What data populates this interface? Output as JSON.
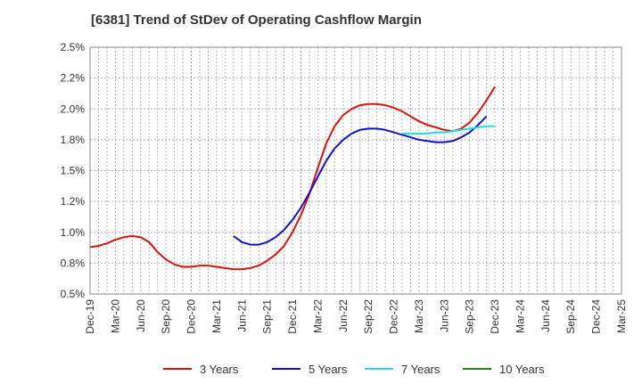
{
  "chart_data": {
    "type": "line",
    "title": "[6381]  Trend of StDev of Operating Cashflow Margin",
    "xlabel": "",
    "ylabel": "",
    "ylim": [
      0.5,
      2.5
    ],
    "yticks": [
      "0.5%",
      "0.8%",
      "1.0%",
      "1.2%",
      "1.5%",
      "1.8%",
      "2.0%",
      "2.2%",
      "2.5%"
    ],
    "xticks": [
      "Dec-19",
      "Mar-20",
      "Jun-20",
      "Sep-20",
      "Dec-20",
      "Mar-21",
      "Jun-21",
      "Sep-21",
      "Dec-21",
      "Mar-22",
      "Jun-22",
      "Sep-22",
      "Dec-22",
      "Mar-23",
      "Jun-23",
      "Sep-23",
      "Dec-23",
      "Mar-24",
      "Jun-24",
      "Sep-24",
      "Dec-24",
      "Mar-25"
    ],
    "grid": true,
    "legend_position": "bottom",
    "series": [
      {
        "name": "3 Years",
        "color": "#dd1111",
        "points": [
          [
            0,
            0.88
          ],
          [
            1,
            0.89
          ],
          [
            2,
            0.91
          ],
          [
            3,
            0.94
          ],
          [
            4,
            0.96
          ],
          [
            5,
            0.97
          ],
          [
            6,
            0.96
          ],
          [
            7,
            0.92
          ],
          [
            8,
            0.84
          ],
          [
            9,
            0.78
          ],
          [
            10,
            0.74
          ],
          [
            11,
            0.72
          ],
          [
            12,
            0.72
          ],
          [
            13,
            0.73
          ],
          [
            14,
            0.73
          ],
          [
            15,
            0.72
          ],
          [
            16,
            0.71
          ],
          [
            17,
            0.7
          ],
          [
            18,
            0.7
          ],
          [
            19,
            0.71
          ],
          [
            20,
            0.73
          ],
          [
            21,
            0.77
          ],
          [
            22,
            0.82
          ],
          [
            23,
            0.89
          ],
          [
            24,
            1.0
          ],
          [
            25,
            1.14
          ],
          [
            26,
            1.31
          ],
          [
            27,
            1.52
          ],
          [
            28,
            1.72
          ],
          [
            29,
            1.86
          ],
          [
            30,
            1.95
          ],
          [
            31,
            2.0
          ],
          [
            32,
            2.03
          ],
          [
            33,
            2.04
          ],
          [
            34,
            2.04
          ],
          [
            35,
            2.03
          ],
          [
            36,
            2.01
          ],
          [
            37,
            1.98
          ],
          [
            38,
            1.94
          ],
          [
            39,
            1.9
          ],
          [
            40,
            1.87
          ],
          [
            41,
            1.85
          ],
          [
            42,
            1.83
          ],
          [
            43,
            1.82
          ],
          [
            44,
            1.84
          ],
          [
            45,
            1.89
          ],
          [
            46,
            1.97
          ],
          [
            47,
            2.07
          ],
          [
            48,
            2.18
          ]
        ]
      },
      {
        "name": "5 Years",
        "color": "#1111cc",
        "points": [
          [
            17,
            0.97
          ],
          [
            18,
            0.92
          ],
          [
            19,
            0.9
          ],
          [
            20,
            0.9
          ],
          [
            21,
            0.92
          ],
          [
            22,
            0.96
          ],
          [
            23,
            1.02
          ],
          [
            24,
            1.1
          ],
          [
            25,
            1.2
          ],
          [
            26,
            1.32
          ],
          [
            27,
            1.45
          ],
          [
            28,
            1.58
          ],
          [
            29,
            1.68
          ],
          [
            30,
            1.75
          ],
          [
            31,
            1.8
          ],
          [
            32,
            1.83
          ],
          [
            33,
            1.84
          ],
          [
            34,
            1.84
          ],
          [
            35,
            1.83
          ],
          [
            36,
            1.81
          ],
          [
            37,
            1.79
          ],
          [
            38,
            1.77
          ],
          [
            39,
            1.75
          ],
          [
            40,
            1.74
          ],
          [
            41,
            1.73
          ],
          [
            42,
            1.73
          ],
          [
            43,
            1.74
          ],
          [
            44,
            1.77
          ],
          [
            45,
            1.81
          ],
          [
            46,
            1.87
          ],
          [
            47,
            1.94
          ]
        ]
      },
      {
        "name": "7 Years",
        "color": "#22dddd",
        "points": [
          [
            37,
            1.8
          ],
          [
            38,
            1.8
          ],
          [
            39,
            1.8
          ],
          [
            40,
            1.8
          ],
          [
            41,
            1.81
          ],
          [
            42,
            1.81
          ],
          [
            43,
            1.82
          ],
          [
            44,
            1.83
          ],
          [
            45,
            1.84
          ],
          [
            46,
            1.85
          ],
          [
            47,
            1.86
          ],
          [
            48,
            1.86
          ]
        ]
      },
      {
        "name": "10 Years",
        "color": "#228822",
        "points": []
      }
    ]
  }
}
